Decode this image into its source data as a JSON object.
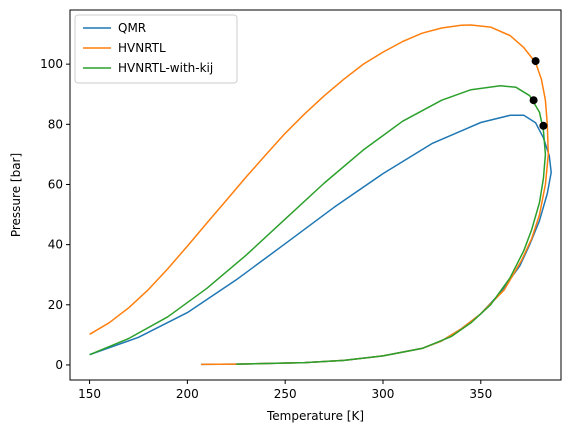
{
  "chart_data": {
    "type": "line",
    "title": "",
    "xlabel": "Temperature [K]",
    "ylabel": "Pressure [bar]",
    "xlim": [
      140,
      391
    ],
    "ylim": [
      -5,
      118
    ],
    "xticks": [
      150,
      200,
      250,
      300,
      350
    ],
    "yticks": [
      0,
      20,
      40,
      60,
      80,
      100
    ],
    "grid": false,
    "legend_position": "top-left",
    "series": [
      {
        "name": "QMR",
        "color": "#1f77b4",
        "points": [
          [
            150,
            3.4
          ],
          [
            175,
            9.2
          ],
          [
            200,
            17.4
          ],
          [
            225,
            28.3
          ],
          [
            250,
            40.3
          ],
          [
            275,
            52.4
          ],
          [
            300,
            63.6
          ],
          [
            325,
            73.6
          ],
          [
            350,
            80.6
          ],
          [
            365,
            83.0
          ],
          [
            372,
            83.0
          ],
          [
            378,
            80.5
          ],
          [
            382,
            75.5
          ],
          [
            385,
            69.5
          ],
          [
            386,
            64.0
          ],
          [
            384,
            57.0
          ],
          [
            380,
            48.0
          ],
          [
            375,
            40.0
          ],
          [
            370,
            33.0
          ],
          [
            360,
            24.0
          ],
          [
            350,
            17.0
          ],
          [
            340,
            12.0
          ],
          [
            330,
            8.0
          ],
          [
            320,
            5.5
          ],
          [
            300,
            3.0
          ],
          [
            280,
            1.5
          ],
          [
            260,
            0.8
          ],
          [
            240,
            0.5
          ],
          [
            225,
            0.3
          ],
          [
            207,
            0.2
          ]
        ]
      },
      {
        "name": "HVNRTL",
        "color": "#ff7f0e",
        "points": [
          [
            150,
            10.2
          ],
          [
            160,
            14.0
          ],
          [
            170,
            19.0
          ],
          [
            180,
            25.0
          ],
          [
            190,
            32.0
          ],
          [
            200,
            39.5
          ],
          [
            210,
            47.2
          ],
          [
            220,
            54.8
          ],
          [
            230,
            62.5
          ],
          [
            240,
            69.8
          ],
          [
            250,
            77.0
          ],
          [
            260,
            83.5
          ],
          [
            270,
            89.5
          ],
          [
            280,
            95.0
          ],
          [
            290,
            100.0
          ],
          [
            300,
            104.0
          ],
          [
            310,
            107.5
          ],
          [
            320,
            110.3
          ],
          [
            330,
            112.0
          ],
          [
            340,
            112.9
          ],
          [
            345,
            113.0
          ],
          [
            355,
            112.3
          ],
          [
            365,
            109.5
          ],
          [
            372,
            105.5
          ],
          [
            378,
            100.5
          ],
          [
            381,
            95.0
          ],
          [
            383,
            88.0
          ],
          [
            384,
            80.0
          ],
          [
            384.5,
            70.0
          ],
          [
            383,
            60.0
          ],
          [
            380,
            50.0
          ],
          [
            376,
            42.0
          ],
          [
            371,
            35.0
          ],
          [
            362,
            25.0
          ],
          [
            350,
            17.0
          ],
          [
            340,
            12.0
          ],
          [
            330,
            8.0
          ],
          [
            320,
            5.5
          ],
          [
            300,
            3.0
          ],
          [
            280,
            1.5
          ],
          [
            260,
            0.8
          ],
          [
            240,
            0.5
          ],
          [
            225,
            0.3
          ],
          [
            207,
            0.2
          ]
        ]
      },
      {
        "name": "HVNRTL-with-kij",
        "color": "#2ca02c",
        "points": [
          [
            150,
            3.4
          ],
          [
            170,
            8.8
          ],
          [
            190,
            16.0
          ],
          [
            210,
            25.5
          ],
          [
            230,
            36.5
          ],
          [
            250,
            48.5
          ],
          [
            270,
            60.5
          ],
          [
            290,
            71.5
          ],
          [
            310,
            81.0
          ],
          [
            330,
            88.0
          ],
          [
            345,
            91.5
          ],
          [
            360,
            92.8
          ],
          [
            368,
            92.3
          ],
          [
            375,
            89.5
          ],
          [
            380,
            84.0
          ],
          [
            382,
            78.0
          ],
          [
            383,
            70.0
          ],
          [
            382,
            62.0
          ],
          [
            380,
            54.0
          ],
          [
            376,
            45.0
          ],
          [
            372,
            38.0
          ],
          [
            365,
            29.0
          ],
          [
            355,
            20.0
          ],
          [
            345,
            14.0
          ],
          [
            335,
            9.5
          ],
          [
            320,
            5.5
          ],
          [
            300,
            3.0
          ],
          [
            280,
            1.5
          ],
          [
            260,
            0.8
          ],
          [
            240,
            0.5
          ],
          [
            225,
            0.3
          ]
        ]
      }
    ],
    "markers": [
      {
        "x": 378,
        "y": 101,
        "color": "#000000"
      },
      {
        "x": 377,
        "y": 88,
        "color": "#000000"
      },
      {
        "x": 382,
        "y": 79.5,
        "color": "#000000"
      }
    ]
  }
}
